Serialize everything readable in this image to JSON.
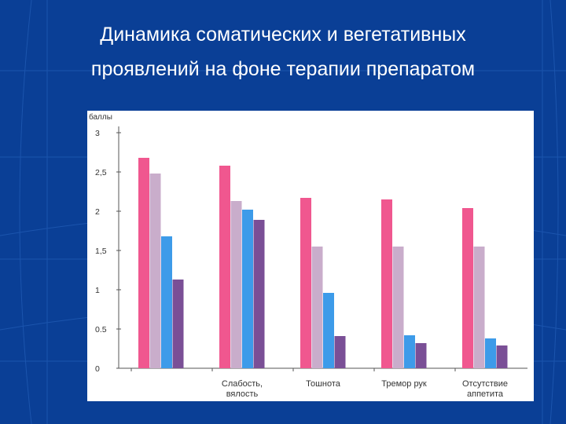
{
  "slide": {
    "title_line1": "Динамика соматических и вегетативных",
    "title_line2": "проявлений на фоне терапии препаратом",
    "background_color": "#0a3f96",
    "text_color": "#ffffff"
  },
  "chart_data": {
    "type": "bar",
    "title": "",
    "xlabel": "",
    "ylabel": "баллы",
    "ylim": [
      0,
      3
    ],
    "yticks": [
      "0",
      "0.5",
      "1",
      "1,5",
      "2",
      "2,5",
      "3"
    ],
    "ytick_values": [
      0,
      0.5,
      1,
      1.5,
      2,
      2.5,
      3
    ],
    "grid": false,
    "legend": "none",
    "categories": [
      "",
      "Слабость, вялость",
      "Тошнота",
      "Тремор рук",
      "Отсутствие аппетита"
    ],
    "category_lines": [
      [],
      [
        "Слабость,",
        "вялость"
      ],
      [
        "Тошнота"
      ],
      [
        "Тремор рук"
      ],
      [
        "Отсутствие",
        "аппетита"
      ]
    ],
    "series": [
      {
        "color": "#f0578f",
        "values": [
          2.68,
          2.58,
          2.17,
          2.15,
          2.04
        ]
      },
      {
        "color": "#c9adcb",
        "values": [
          2.48,
          2.13,
          1.55,
          1.55,
          1.55
        ]
      },
      {
        "color": "#3d9be9",
        "values": [
          1.68,
          2.02,
          0.96,
          0.42,
          0.38
        ]
      },
      {
        "color": "#7a4f96",
        "values": [
          1.13,
          1.89,
          0.41,
          0.32,
          0.29
        ]
      }
    ]
  }
}
